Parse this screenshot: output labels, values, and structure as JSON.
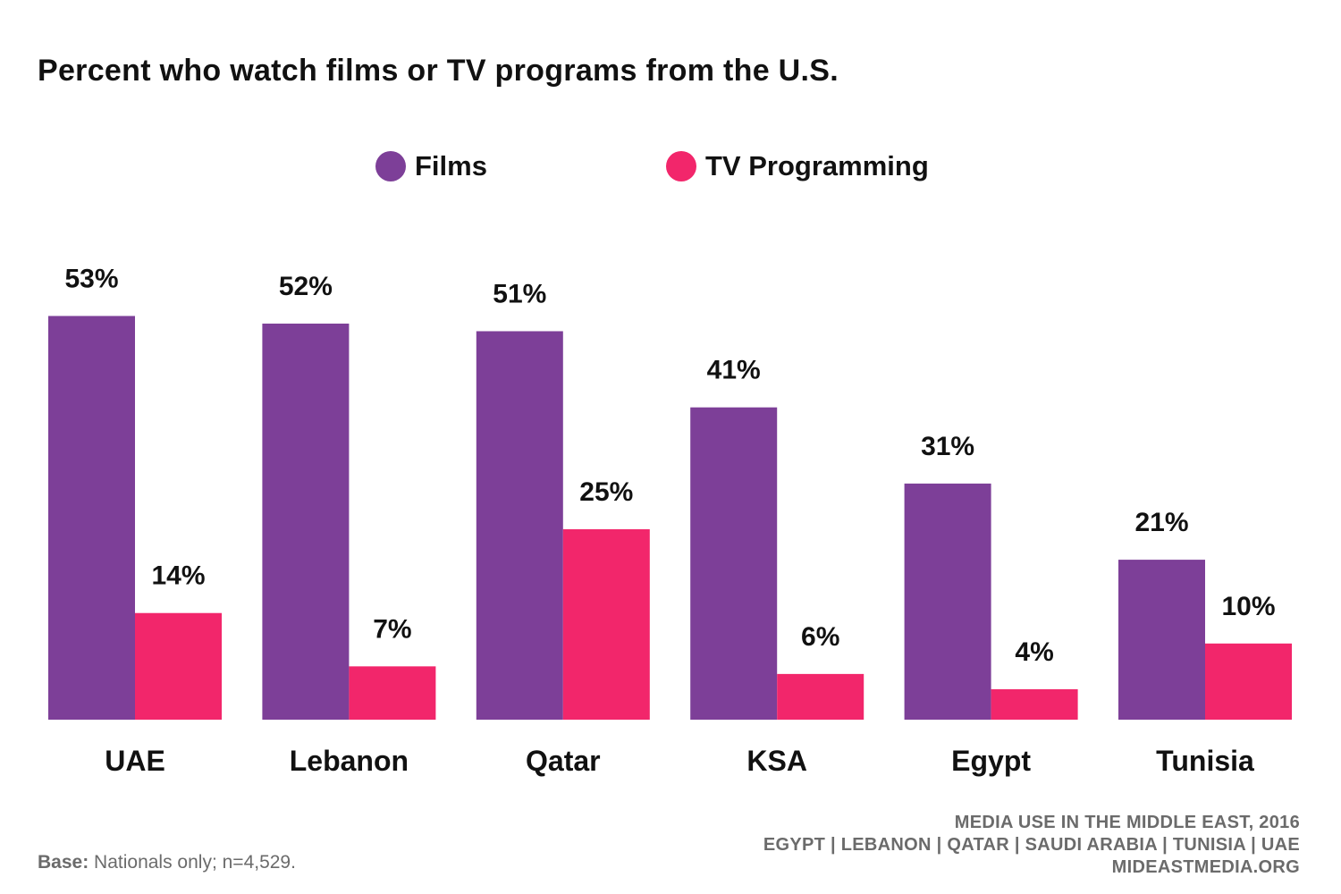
{
  "chart_data": {
    "type": "bar",
    "title": "Percent who watch films or TV programs from the U.S.",
    "categories": [
      "UAE",
      "Lebanon",
      "Qatar",
      "KSA",
      "Egypt",
      "Tunisia"
    ],
    "series": [
      {
        "name": "Films",
        "color": "#7d3f98",
        "values": [
          53,
          52,
          51,
          41,
          31,
          21
        ],
        "labels": [
          "53%",
          "52%",
          "51%",
          "41%",
          "31%",
          "21%"
        ]
      },
      {
        "name": "TV Programming",
        "color": "#f2266b",
        "values": [
          14,
          7,
          25,
          6,
          4,
          10
        ],
        "labels": [
          "14%",
          "7%",
          "25%",
          "6%",
          "4%",
          "10%"
        ]
      }
    ],
    "ylim": [
      0,
      60
    ],
    "grid": false,
    "legend": "top-center",
    "xlabel": "",
    "ylabel": ""
  },
  "footer": {
    "base_label": "Base:",
    "base_text": "Nationals only; n=4,529.",
    "source_line1": "MEDIA USE IN THE MIDDLE EAST, 2016",
    "source_line2": "EGYPT | LEBANON | QATAR | SAUDI ARABIA | TUNISIA | UAE",
    "source_line3": "MIDEASTMEDIA.ORG"
  }
}
